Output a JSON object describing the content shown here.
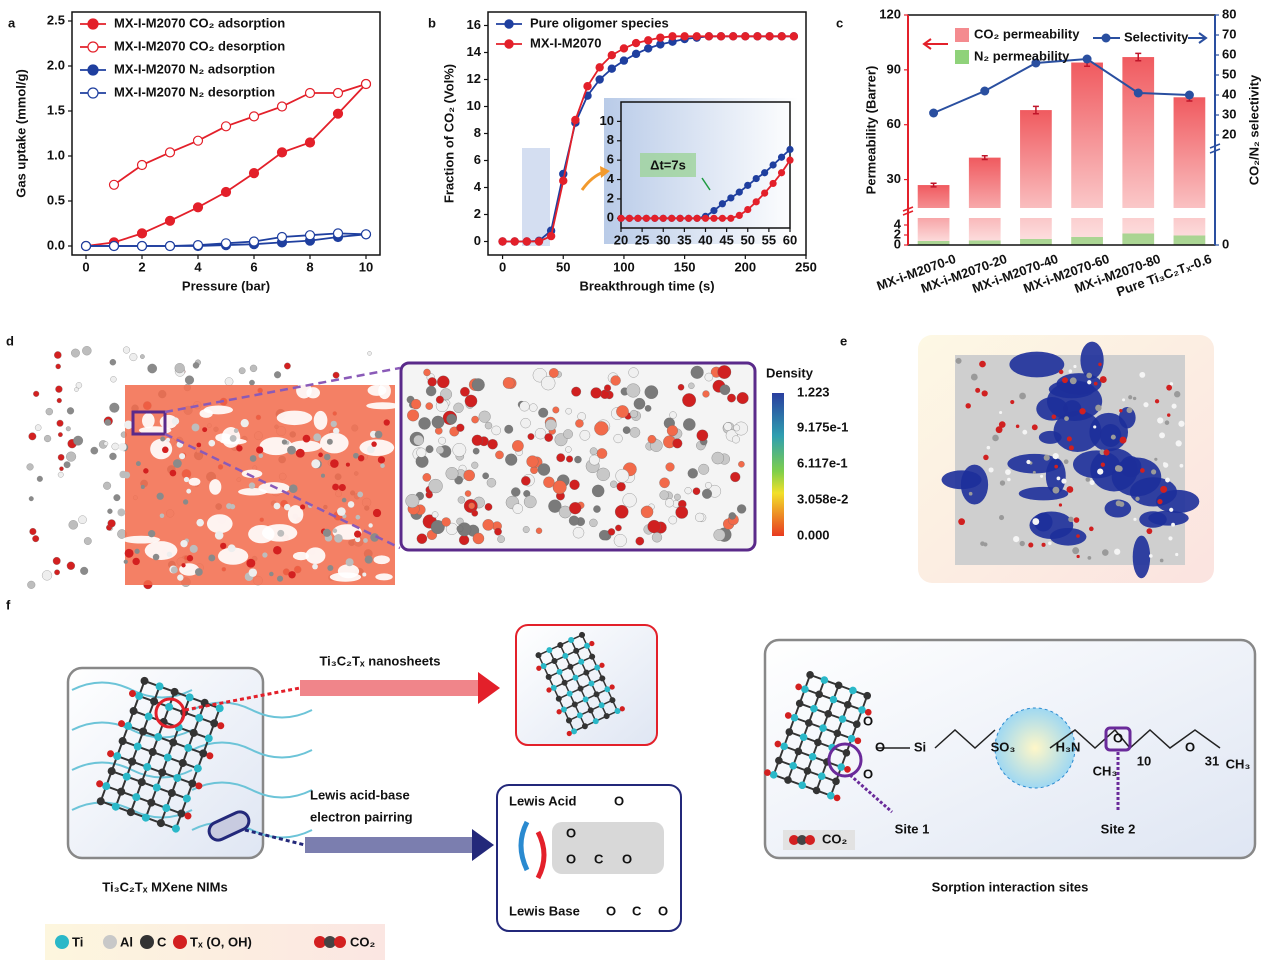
{
  "panel_labels": [
    "a",
    "b",
    "c",
    "d",
    "e",
    "f"
  ],
  "chart_data": [
    {
      "type": "line",
      "xlabel": "Pressure (bar)",
      "ylabel": "Gas uptake (mmol/g)",
      "x": [
        0,
        1,
        2,
        3,
        4,
        5,
        6,
        7,
        8,
        9,
        10
      ],
      "xlim": [
        -0.5,
        10.5
      ],
      "xticks": [
        0,
        2,
        4,
        6,
        8,
        10
      ],
      "ylim": [
        -0.1,
        2.6
      ],
      "yticks": [
        {
          "value": 0,
          "label": "0.0"
        },
        {
          "value": 0.5,
          "label": "0.5"
        },
        {
          "value": 1,
          "label": "1.0"
        },
        {
          "value": 1.5,
          "label": "1.5"
        },
        {
          "value": 2,
          "label": "2.0"
        },
        {
          "value": 2.5,
          "label": "2.5"
        }
      ],
      "legend": "upper left",
      "series": [
        {
          "name": "MX-I-M2070  CO₂ adsorption",
          "color": "#e3202a",
          "marker": "filled",
          "values": [
            0,
            0.04,
            0.14,
            0.28,
            0.43,
            0.6,
            0.81,
            1.04,
            1.15,
            1.47,
            1.8
          ]
        },
        {
          "name": "MX-I-M2070  CO₂ desorption",
          "color": "#e3202a",
          "marker": "open",
          "values": [
            null,
            0.68,
            0.9,
            1.04,
            1.17,
            1.33,
            1.44,
            1.55,
            1.7,
            1.7,
            1.8
          ]
        },
        {
          "name": "MX-I-M2070  N₂ adsorption",
          "color": "#1f3f9f",
          "marker": "filled",
          "values": [
            0,
            0,
            0,
            0,
            0,
            0.01,
            0.02,
            0.04,
            0.06,
            0.1,
            0.13
          ]
        },
        {
          "name": "MX-I-M2070  N₂ desorption",
          "color": "#1f3f9f",
          "marker": "open",
          "values": [
            0,
            0,
            0,
            0,
            0.01,
            0.03,
            0.05,
            0.1,
            0.12,
            0.14,
            0.13
          ]
        }
      ]
    },
    {
      "type": "line",
      "xlabel": "Breakthrough time (s)",
      "ylabel": "Fraction of CO₂ (Vol%)",
      "x": [
        0,
        10,
        20,
        30,
        40,
        50,
        60,
        70,
        80,
        90,
        100,
        110,
        120,
        130,
        140,
        150,
        160,
        170,
        180,
        190,
        200,
        210,
        220,
        230,
        240
      ],
      "xlim": [
        -12,
        250
      ],
      "xticks": [
        0,
        50,
        100,
        150,
        200,
        250
      ],
      "ylim": [
        -1,
        17
      ],
      "yticks": [
        0,
        2,
        4,
        6,
        8,
        10,
        12,
        14,
        16
      ],
      "legend": "upper left",
      "series": [
        {
          "name": "Pure oligomer species",
          "color": "#1f3f9f",
          "marker": "filled",
          "values": [
            0,
            0,
            0,
            0.05,
            0.8,
            5.0,
            8.8,
            10.8,
            12.0,
            12.8,
            13.4,
            13.9,
            14.3,
            14.6,
            14.8,
            15.0,
            15.1,
            15.2,
            15.2,
            15.2,
            15.2,
            15.2,
            15.2,
            15.2,
            15.2
          ]
        },
        {
          "name": "MX-I-M2070",
          "color": "#e3202a",
          "marker": "filled",
          "values": [
            0,
            0,
            0,
            0,
            0.4,
            4.5,
            9.0,
            11.5,
            12.9,
            13.8,
            14.3,
            14.7,
            14.9,
            15.1,
            15.2,
            15.2,
            15.2,
            15.2,
            15.2,
            15.2,
            15.2,
            15.2,
            15.2,
            15.2,
            15.2
          ]
        }
      ]
    },
    {
      "type": "line",
      "annotation": "Δt=7s",
      "x": [
        20,
        22,
        24,
        26,
        28,
        30,
        32,
        34,
        36,
        38,
        40,
        42,
        44,
        46,
        48,
        50,
        52,
        54,
        56,
        58,
        60
      ],
      "xlim": [
        20,
        60
      ],
      "xticks": [
        20,
        25,
        30,
        35,
        40,
        45,
        50,
        55,
        60
      ],
      "ylim": [
        -1,
        12
      ],
      "yticks": [
        0,
        2,
        4,
        6,
        8,
        10
      ],
      "series": [
        {
          "color": "#1f3f9f",
          "marker": "filled",
          "values": [
            0,
            0,
            0,
            0,
            0,
            0,
            0,
            0,
            0,
            0,
            0.2,
            0.8,
            1.5,
            2.1,
            2.7,
            3.4,
            4.1,
            4.7,
            5.5,
            6.3,
            7.1
          ]
        },
        {
          "color": "#e3202a",
          "marker": "filled",
          "values": [
            0,
            0,
            0,
            0,
            0,
            0,
            0,
            0,
            0,
            0,
            0,
            0,
            0,
            0,
            0.3,
            0.9,
            1.7,
            2.6,
            3.6,
            4.7,
            6.0
          ]
        }
      ]
    },
    {
      "type": "bar",
      "ylabel": "Permeability (Barrer)",
      "y2label": "CO₂/N₂ selectivity",
      "categories": [
        "MX-i-M2070-0",
        "MX-i-M2070-20",
        "MX-i-M2070-40",
        "MX-i-M2070-60",
        "MX-i-M2070-80",
        "Pure Ti₃C₂Tₓ-0.6"
      ],
      "ylim": [
        0,
        120
      ],
      "yticks": [
        0,
        2,
        4,
        30,
        60,
        90,
        120
      ],
      "ybreak": [
        5,
        15
      ],
      "y2lim": [
        0,
        80
      ],
      "y2ticks": [
        0,
        20,
        30,
        40,
        50,
        60,
        70,
        80
      ],
      "y2break": [
        0,
        15
      ],
      "series": [
        {
          "name": "CO₂ permeability",
          "color": "#f05a5f",
          "values": [
            27,
            42,
            68,
            94,
            97,
            75
          ],
          "errors": [
            1,
            1,
            2,
            2,
            2,
            2
          ]
        },
        {
          "name": "N₂ permeability",
          "color": "#8fd27a",
          "values": [
            0.8,
            0.9,
            1.2,
            1.6,
            2.3,
            1.9
          ]
        },
        {
          "name": "Selectivity",
          "color": "#2a4fa0",
          "axis": "y2",
          "values": [
            31,
            42,
            56,
            58,
            41,
            40
          ]
        }
      ]
    }
  ],
  "panel_d": {
    "colorbar_title": "Density",
    "colorbar_labels": [
      "1.223",
      "9.175e-1",
      "6.117e-1",
      "3.058e-2",
      "0.000"
    ]
  },
  "panel_f": {
    "arrow_top": "Ti₃C₂Tₓ nanosheets",
    "arrow_bottom": [
      "Lewis acid-base",
      "electron pairring"
    ],
    "left_caption": "Ti₃C₂Tₓ MXene NIMs",
    "lewis_acid": "Lewis Acid",
    "lewis_base": "Lewis Base",
    "lewis_o": "O",
    "lewis_oco": [
      "O",
      "C",
      "O"
    ],
    "right_caption": "Sorption interaction sites",
    "site1": "Site 1",
    "site2": "Site 2",
    "co2_label": "CO₂",
    "chem": [
      "O",
      "O",
      "O",
      "Si",
      "SO₃",
      "H₃N",
      "CH₃",
      "O",
      "10",
      "O",
      "31",
      "CH₃"
    ],
    "legend": [
      "Ti",
      "Al",
      "C",
      "Tₓ (O, OH)",
      "CO₂"
    ]
  }
}
